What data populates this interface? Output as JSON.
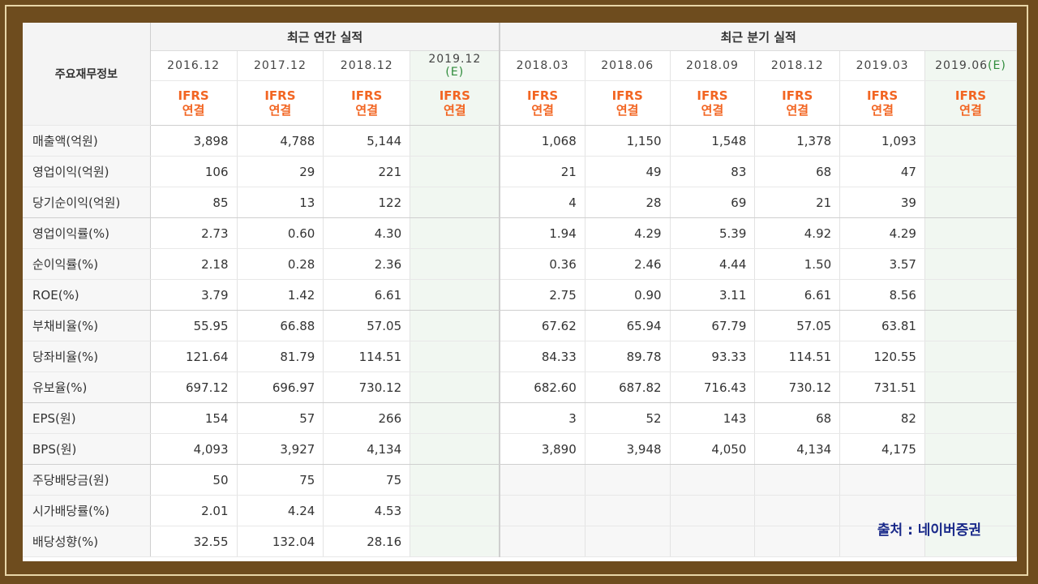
{
  "header": {
    "row_header": "주요재무정보",
    "annual_group": "최근 연간 실적",
    "quarter_group": "최근 분기 실적"
  },
  "periods": {
    "annual": [
      "2016.12",
      "2017.12",
      "2018.12",
      "2019.12"
    ],
    "annual_est_suffix": "(E)",
    "quarter": [
      "2018.03",
      "2018.06",
      "2018.09",
      "2018.12",
      "2019.03",
      "2019.06"
    ],
    "quarter_est_suffix": "(E)"
  },
  "basis": {
    "line1": "IFRS",
    "line2": "연결"
  },
  "rows": [
    {
      "label": "매출액(억원)",
      "annual": [
        "3,898",
        "4,788",
        "5,144",
        ""
      ],
      "quarter": [
        "1,068",
        "1,150",
        "1,548",
        "1,378",
        "1,093",
        ""
      ]
    },
    {
      "label": "영업이익(억원)",
      "annual": [
        "106",
        "29",
        "221",
        ""
      ],
      "quarter": [
        "21",
        "49",
        "83",
        "68",
        "47",
        ""
      ]
    },
    {
      "label": "당기순이익(억원)",
      "annual": [
        "85",
        "13",
        "122",
        ""
      ],
      "quarter": [
        "4",
        "28",
        "69",
        "21",
        "39",
        ""
      ]
    },
    {
      "label": "영업이익률(%)",
      "annual": [
        "2.73",
        "0.60",
        "4.30",
        ""
      ],
      "quarter": [
        "1.94",
        "4.29",
        "5.39",
        "4.92",
        "4.29",
        ""
      ]
    },
    {
      "label": "순이익률(%)",
      "annual": [
        "2.18",
        "0.28",
        "2.36",
        ""
      ],
      "quarter": [
        "0.36",
        "2.46",
        "4.44",
        "1.50",
        "3.57",
        ""
      ]
    },
    {
      "label": "ROE(%)",
      "annual": [
        "3.79",
        "1.42",
        "6.61",
        ""
      ],
      "quarter": [
        "2.75",
        "0.90",
        "3.11",
        "6.61",
        "8.56",
        ""
      ]
    },
    {
      "label": "부채비율(%)",
      "annual": [
        "55.95",
        "66.88",
        "57.05",
        ""
      ],
      "quarter": [
        "67.62",
        "65.94",
        "67.79",
        "57.05",
        "63.81",
        ""
      ]
    },
    {
      "label": "당좌비율(%)",
      "annual": [
        "121.64",
        "81.79",
        "114.51",
        ""
      ],
      "quarter": [
        "84.33",
        "89.78",
        "93.33",
        "114.51",
        "120.55",
        ""
      ]
    },
    {
      "label": "유보율(%)",
      "annual": [
        "697.12",
        "696.97",
        "730.12",
        ""
      ],
      "quarter": [
        "682.60",
        "687.82",
        "716.43",
        "730.12",
        "731.51",
        ""
      ]
    },
    {
      "label": "EPS(원)",
      "annual": [
        "154",
        "57",
        "266",
        ""
      ],
      "quarter": [
        "3",
        "52",
        "143",
        "68",
        "82",
        ""
      ]
    },
    {
      "label": "BPS(원)",
      "annual": [
        "4,093",
        "3,927",
        "4,134",
        ""
      ],
      "quarter": [
        "3,890",
        "3,948",
        "4,050",
        "4,134",
        "4,175",
        ""
      ]
    },
    {
      "label": "주당배당금(원)",
      "annual": [
        "50",
        "75",
        "75",
        ""
      ],
      "quarter": [
        "",
        "",
        "",
        "",
        "",
        ""
      ]
    },
    {
      "label": "시가배당률(%)",
      "annual": [
        "2.01",
        "4.24",
        "4.53",
        ""
      ],
      "quarter": [
        "",
        "",
        "",
        "",
        "",
        ""
      ]
    },
    {
      "label": "배당성향(%)",
      "annual": [
        "32.55",
        "132.04",
        "28.16",
        ""
      ],
      "quarter": [
        "",
        "",
        "",
        "",
        "",
        ""
      ]
    }
  ],
  "source": "출처 : 네이버증권",
  "colors": {
    "frame_bg": "#6e4c1e",
    "basis_orange": "#f26522",
    "estimate_green": "#2e8b3a",
    "estimate_bg": "#f1f7f1",
    "source_blue": "#1a2a8a"
  }
}
